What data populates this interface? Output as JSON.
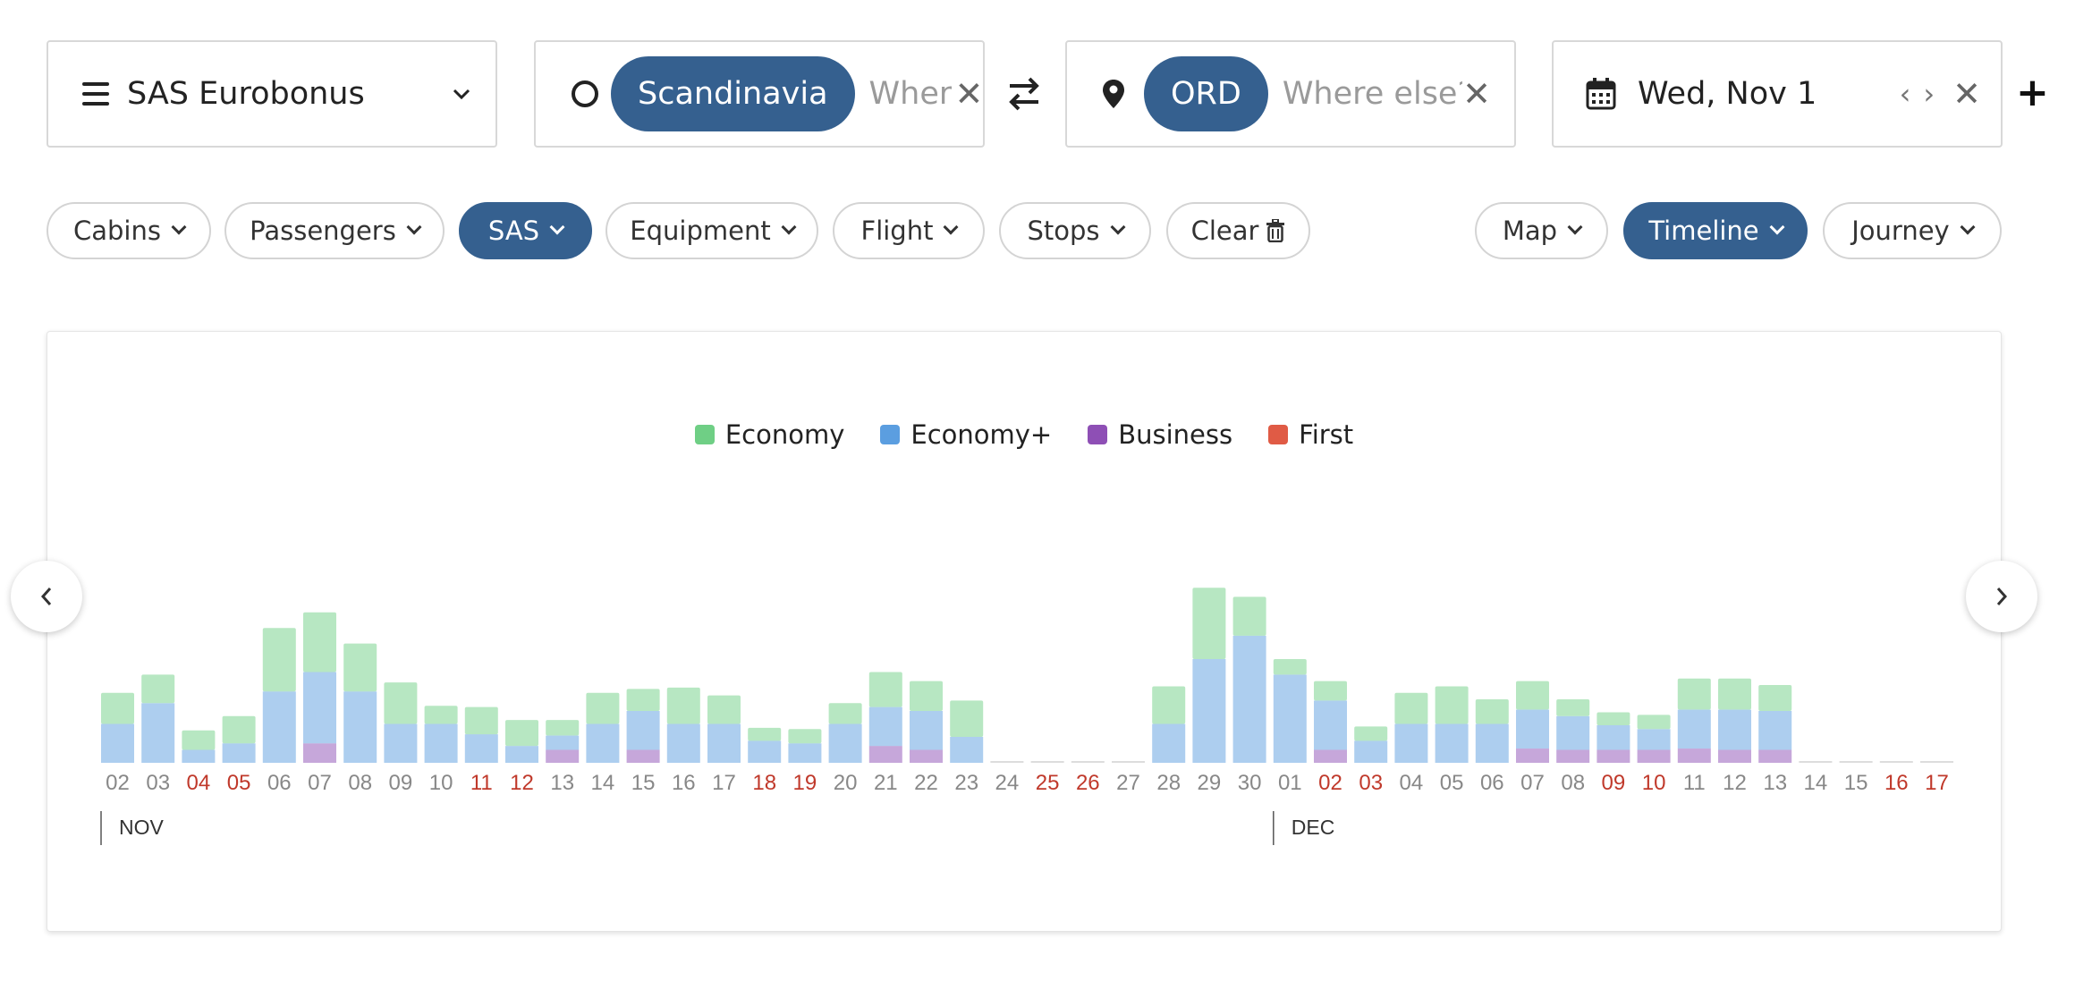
{
  "search": {
    "program": "SAS Eurobonus",
    "origin_chip": "Scandinavia",
    "origin_placeholder": "Where else?",
    "destination_chip": "ORD",
    "destination_placeholder": "Where else?",
    "date": "Wed, Nov 1"
  },
  "filters": {
    "cabins": "Cabins",
    "passengers": "Passengers",
    "sas": "SAS",
    "equipment": "Equipment",
    "flight": "Flight",
    "stops": "Stops",
    "clear": "Clear",
    "map": "Map",
    "timeline": "Timeline",
    "journey": "Journey"
  },
  "colors": {
    "accent": "#35608f",
    "economy": "#6fcf85",
    "economy_plus": "#5b9ee0",
    "business": "#8e4fb5",
    "first": "#e05b45",
    "weekend_label": "#c0392b"
  },
  "chart_data": {
    "type": "bar",
    "stacked": true,
    "legend": [
      "Economy",
      "Economy+",
      "Business",
      "First"
    ],
    "months": [
      {
        "label": "NOV",
        "start_index": 0
      },
      {
        "label": "DEC",
        "start_index": 29
      }
    ],
    "days": [
      {
        "d": "02",
        "w": false,
        "bus": 0,
        "ecop": 30,
        "eco": 24
      },
      {
        "d": "03",
        "w": false,
        "bus": 0,
        "ecop": 46,
        "eco": 22
      },
      {
        "d": "04",
        "w": true,
        "bus": 0,
        "ecop": 10,
        "eco": 15
      },
      {
        "d": "05",
        "w": true,
        "bus": 0,
        "ecop": 15,
        "eco": 21
      },
      {
        "d": "06",
        "w": false,
        "bus": 0,
        "ecop": 55,
        "eco": 49
      },
      {
        "d": "07",
        "w": false,
        "bus": 15,
        "ecop": 55,
        "eco": 46
      },
      {
        "d": "08",
        "w": false,
        "bus": 0,
        "ecop": 55,
        "eco": 37
      },
      {
        "d": "09",
        "w": false,
        "bus": 0,
        "ecop": 30,
        "eco": 32
      },
      {
        "d": "10",
        "w": false,
        "bus": 0,
        "ecop": 30,
        "eco": 14
      },
      {
        "d": "11",
        "w": true,
        "bus": 0,
        "ecop": 22,
        "eco": 21
      },
      {
        "d": "12",
        "w": true,
        "bus": 0,
        "ecop": 13,
        "eco": 20
      },
      {
        "d": "13",
        "w": false,
        "bus": 10,
        "ecop": 11,
        "eco": 12
      },
      {
        "d": "14",
        "w": false,
        "bus": 0,
        "ecop": 30,
        "eco": 24
      },
      {
        "d": "15",
        "w": false,
        "bus": 10,
        "ecop": 30,
        "eco": 17
      },
      {
        "d": "16",
        "w": false,
        "bus": 0,
        "ecop": 30,
        "eco": 28
      },
      {
        "d": "17",
        "w": false,
        "bus": 0,
        "ecop": 30,
        "eco": 22
      },
      {
        "d": "18",
        "w": true,
        "bus": 0,
        "ecop": 17,
        "eco": 10
      },
      {
        "d": "19",
        "w": true,
        "bus": 0,
        "ecop": 15,
        "eco": 11
      },
      {
        "d": "20",
        "w": false,
        "bus": 0,
        "ecop": 30,
        "eco": 16
      },
      {
        "d": "21",
        "w": false,
        "bus": 13,
        "ecop": 30,
        "eco": 27
      },
      {
        "d": "22",
        "w": false,
        "bus": 10,
        "ecop": 30,
        "eco": 23
      },
      {
        "d": "23",
        "w": false,
        "bus": 0,
        "ecop": 20,
        "eco": 28
      },
      {
        "d": "24",
        "w": false,
        "bus": 0,
        "ecop": 0,
        "eco": 0
      },
      {
        "d": "25",
        "w": true,
        "bus": 0,
        "ecop": 0,
        "eco": 0
      },
      {
        "d": "26",
        "w": true,
        "bus": 0,
        "ecop": 0,
        "eco": 0
      },
      {
        "d": "27",
        "w": false,
        "bus": 0,
        "ecop": 0,
        "eco": 0
      },
      {
        "d": "28",
        "w": false,
        "bus": 0,
        "ecop": 30,
        "eco": 29
      },
      {
        "d": "29",
        "w": false,
        "bus": 0,
        "ecop": 80,
        "eco": 55
      },
      {
        "d": "30",
        "w": false,
        "bus": 0,
        "ecop": 98,
        "eco": 30
      },
      {
        "d": "01",
        "w": false,
        "bus": 0,
        "ecop": 68,
        "eco": 12
      },
      {
        "d": "02",
        "w": true,
        "bus": 10,
        "ecop": 38,
        "eco": 15
      },
      {
        "d": "03",
        "w": true,
        "bus": 0,
        "ecop": 17,
        "eco": 11
      },
      {
        "d": "04",
        "w": false,
        "bus": 0,
        "ecop": 30,
        "eco": 24
      },
      {
        "d": "05",
        "w": false,
        "bus": 0,
        "ecop": 30,
        "eco": 29
      },
      {
        "d": "06",
        "w": false,
        "bus": 0,
        "ecop": 30,
        "eco": 19
      },
      {
        "d": "07",
        "w": false,
        "bus": 11,
        "ecop": 30,
        "eco": 22
      },
      {
        "d": "08",
        "w": false,
        "bus": 10,
        "ecop": 26,
        "eco": 13
      },
      {
        "d": "09",
        "w": true,
        "bus": 10,
        "ecop": 19,
        "eco": 10
      },
      {
        "d": "10",
        "w": true,
        "bus": 10,
        "ecop": 16,
        "eco": 11
      },
      {
        "d": "11",
        "w": false,
        "bus": 11,
        "ecop": 30,
        "eco": 24
      },
      {
        "d": "12",
        "w": false,
        "bus": 10,
        "ecop": 31,
        "eco": 24
      },
      {
        "d": "13",
        "w": false,
        "bus": 10,
        "ecop": 30,
        "eco": 20
      },
      {
        "d": "14",
        "w": false,
        "bus": 0,
        "ecop": 0,
        "eco": 0
      },
      {
        "d": "15",
        "w": false,
        "bus": 0,
        "ecop": 0,
        "eco": 0
      },
      {
        "d": "16",
        "w": true,
        "bus": 0,
        "ecop": 0,
        "eco": 0
      },
      {
        "d": "17",
        "w": true,
        "bus": 0,
        "ecop": 0,
        "eco": 0
      }
    ]
  }
}
